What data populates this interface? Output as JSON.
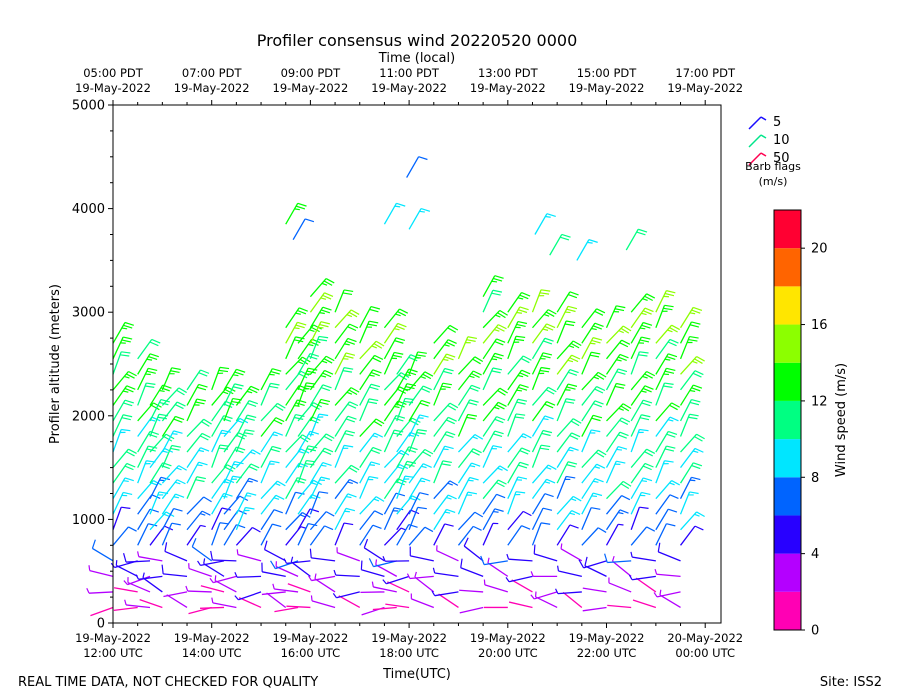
{
  "chart_data": {
    "type": "wind-barb",
    "title": "Profiler consensus wind 20220520 0000",
    "xlabel_top": "Time (local)",
    "xlabel": "Time(UTC)",
    "ylabel": "Profiler altitude (meters)",
    "ylim": [
      0,
      5000
    ],
    "xlim_hours_utc": [
      12.0,
      24.32
    ],
    "y_ticks": [
      0,
      1000,
      2000,
      3000,
      4000,
      5000
    ],
    "x_ticks_bottom": [
      {
        "h": 12,
        "line1": "19-May-2022",
        "line2": "12:00 UTC"
      },
      {
        "h": 14,
        "line1": "19-May-2022",
        "line2": "14:00 UTC"
      },
      {
        "h": 16,
        "line1": "19-May-2022",
        "line2": "16:00 UTC"
      },
      {
        "h": 18,
        "line1": "19-May-2022",
        "line2": "18:00 UTC"
      },
      {
        "h": 20,
        "line1": "19-May-2022",
        "line2": "20:00 UTC"
      },
      {
        "h": 22,
        "line1": "19-May-2022",
        "line2": "22:00 UTC"
      },
      {
        "h": 24,
        "line1": "20-May-2022",
        "line2": "00:00 UTC"
      }
    ],
    "x_ticks_top": [
      {
        "h": 12,
        "line1": "05:00 PDT",
        "line2": "19-May-2022"
      },
      {
        "h": 14,
        "line1": "07:00 PDT",
        "line2": "19-May-2022"
      },
      {
        "h": 16,
        "line1": "09:00 PDT",
        "line2": "19-May-2022"
      },
      {
        "h": 18,
        "line1": "11:00 PDT",
        "line2": "19-May-2022"
      },
      {
        "h": 20,
        "line1": "13:00 PDT",
        "line2": "19-May-2022"
      },
      {
        "h": 22,
        "line1": "15:00 PDT",
        "line2": "19-May-2022"
      },
      {
        "h": 24,
        "line1": "17:00 PDT",
        "line2": "19-May-2022"
      }
    ],
    "barb_legend": {
      "items": [
        {
          "label": "5",
          "color": "#1a0dff"
        },
        {
          "label": "10",
          "color": "#00e58a"
        },
        {
          "label": "50",
          "color": "#ff0050"
        }
      ],
      "title_line1": "Barb flags",
      "title_line2": "(m/s)"
    },
    "colorbar": {
      "label": "Wind speed (m/s)",
      "ticks": [
        0,
        4,
        8,
        12,
        16,
        20
      ],
      "min": 0,
      "max": 22,
      "bands": [
        {
          "from": 0,
          "to": 2,
          "color": "#ff00b4"
        },
        {
          "from": 2,
          "to": 4,
          "color": "#b400ff"
        },
        {
          "from": 4,
          "to": 6,
          "color": "#2800ff"
        },
        {
          "from": 6,
          "to": 8,
          "color": "#0064ff"
        },
        {
          "from": 8,
          "to": 10,
          "color": "#00e6ff"
        },
        {
          "from": 10,
          "to": 12,
          "color": "#00ff82"
        },
        {
          "from": 12,
          "to": 14,
          "color": "#00ff00"
        },
        {
          "from": 14,
          "to": 16,
          "color": "#8cff00"
        },
        {
          "from": 16,
          "to": 18,
          "color": "#ffe600"
        },
        {
          "from": 18,
          "to": 20,
          "color": "#ff6400"
        },
        {
          "from": 20,
          "to": 22,
          "color": "#ff0032"
        }
      ]
    },
    "profile_times_h": [
      12.0,
      12.5,
      12.75,
      13.0,
      13.5,
      14.0,
      14.25,
      14.5,
      15.0,
      15.5,
      15.75,
      16.0,
      16.5,
      17.0,
      17.5,
      17.75,
      18.0,
      18.5,
      19.0,
      19.5,
      20.0,
      20.5,
      21.0,
      21.5,
      22.0,
      22.5,
      23.0,
      23.5
    ],
    "profile_tops_m": [
      2800,
      2600,
      2200,
      2250,
      2300,
      2300,
      2250,
      2150,
      2250,
      2850,
      2750,
      3150,
      3000,
      2950,
      2950,
      2500,
      2450,
      2700,
      2650,
      3200,
      3100,
      3050,
      3000,
      2950,
      2950,
      3050,
      3100,
      2900
    ],
    "profile_levels_m": [
      150,
      300,
      450,
      600,
      750,
      900,
      1050,
      1200,
      1350,
      1500,
      1650,
      1800,
      1950,
      2100,
      2250,
      2400,
      2550,
      2700,
      2850,
      3000,
      3150
    ],
    "speed_by_level_mps": [
      1.5,
      3,
      4,
      5,
      6,
      7,
      8,
      9,
      9.5,
      10,
      10.5,
      11,
      11.5,
      12,
      12.5,
      13,
      13,
      13.5,
      13.5,
      13,
      13
    ],
    "isolated_barbs": [
      {
        "t": 15.5,
        "alt": 3850,
        "speed": 13
      },
      {
        "t": 15.65,
        "alt": 3700,
        "speed": 6
      },
      {
        "t": 17.5,
        "alt": 3850,
        "speed": 9
      },
      {
        "t": 17.95,
        "alt": 4300,
        "speed": 6
      },
      {
        "t": 18.0,
        "alt": 3800,
        "speed": 9
      },
      {
        "t": 20.55,
        "alt": 3750,
        "speed": 9
      },
      {
        "t": 20.85,
        "alt": 3550,
        "speed": 10
      },
      {
        "t": 21.4,
        "alt": 3500,
        "speed": 9
      },
      {
        "t": 22.4,
        "alt": 3600,
        "speed": 11
      }
    ],
    "footer_left": "REAL TIME DATA, NOT CHECKED FOR QUALITY",
    "footer_right": "Site: ISS2"
  }
}
